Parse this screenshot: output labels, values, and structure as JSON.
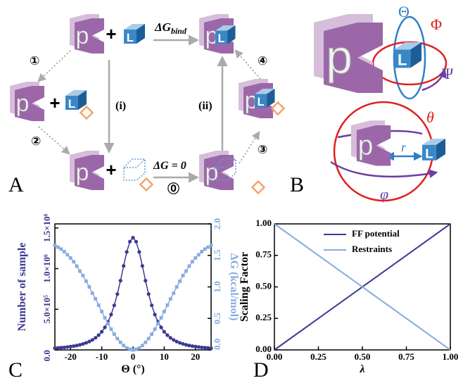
{
  "panels": {
    "a": "A",
    "b": "B",
    "c": "C",
    "d": "D"
  },
  "diagram_a": {
    "receptor": "p",
    "ligand": "L",
    "plus": "+",
    "dg_bind": "ΔG",
    "dg_bind_sub": "bind",
    "dg_zero": "ΔG = 0",
    "steps": [
      "⓪",
      "①",
      "②",
      "③",
      "④"
    ],
    "path_i": "(i)",
    "path_ii": "(ii)"
  },
  "diagram_b": {
    "receptor": "p",
    "ligand": "L",
    "Theta": "Θ",
    "Phi": "Φ",
    "Psi": "Ψ",
    "theta": "θ",
    "r": "r",
    "phi": "φ"
  },
  "chart_data": [
    {
      "type": "line",
      "xlabel": "Θ (°)",
      "ylabel": "Number of sample",
      "y2label": "ΔG (kcal/mol)",
      "x": [
        -25,
        -24,
        -23,
        -22,
        -21,
        -20,
        -19,
        -18,
        -17,
        -16,
        -15,
        -14,
        -13,
        -12,
        -11,
        -10,
        -9,
        -8,
        -7,
        -6,
        -5,
        -4,
        -3,
        -2,
        -1,
        0,
        1,
        2,
        3,
        4,
        5,
        6,
        7,
        8,
        9,
        10,
        11,
        12,
        13,
        14,
        15,
        16,
        17,
        18,
        19,
        20,
        21,
        22,
        23,
        24,
        25
      ],
      "xlim": [
        -25,
        25
      ],
      "xticks": [
        -20,
        -10,
        0,
        10,
        20
      ],
      "ylim": [
        0,
        1550000
      ],
      "yticks": [
        {
          "value": 0,
          "label": "0.0"
        },
        {
          "value": 500000,
          "label": "5.0×10⁵"
        },
        {
          "value": 1000000,
          "label": "1.0×10⁶"
        },
        {
          "value": 1500000,
          "label": "1.5×10⁶"
        }
      ],
      "y2lim": [
        0,
        2
      ],
      "y2ticks": [
        {
          "value": 0,
          "label": "0.0"
        },
        {
          "value": 0.5,
          "label": "0.5"
        },
        {
          "value": 1,
          "label": "1.0"
        },
        {
          "value": 1.5,
          "label": "1.5"
        },
        {
          "value": 2,
          "label": "2.0"
        }
      ],
      "series": [
        {
          "name": "Number of sample",
          "color": "#3b3991",
          "marker": "circle",
          "values": [
            22000,
            25000,
            28000,
            31000,
            36000,
            41000,
            47000,
            54000,
            63000,
            74000,
            87000,
            103000,
            123000,
            149000,
            182000,
            223000,
            277000,
            346000,
            435000,
            548000,
            687000,
            852000,
            1033000,
            1205000,
            1332000,
            1380000,
            1332000,
            1205000,
            1033000,
            852000,
            687000,
            548000,
            435000,
            346000,
            277000,
            223000,
            182000,
            149000,
            123000,
            103000,
            87000,
            74000,
            63000,
            54000,
            47000,
            41000,
            36000,
            31000,
            28000,
            25000,
            22000
          ]
        },
        {
          "name": "ΔG",
          "color": "#86acdf",
          "marker": "square",
          "axis": "y2",
          "values": [
            1.66,
            1.63,
            1.6,
            1.56,
            1.51,
            1.46,
            1.4,
            1.33,
            1.25,
            1.18,
            1.09,
            1.0,
            0.9,
            0.81,
            0.71,
            0.61,
            0.51,
            0.42,
            0.33,
            0.25,
            0.18,
            0.12,
            0.07,
            0.03,
            0.01,
            0,
            0.01,
            0.03,
            0.07,
            0.12,
            0.18,
            0.25,
            0.33,
            0.42,
            0.51,
            0.61,
            0.71,
            0.81,
            0.9,
            1.0,
            1.09,
            1.18,
            1.25,
            1.33,
            1.4,
            1.46,
            1.51,
            1.56,
            1.6,
            1.63,
            1.66
          ]
        }
      ]
    },
    {
      "type": "line",
      "xlabel": "λ",
      "ylabel": "Scaling Factor",
      "legend": "upper center",
      "x": [
        0,
        1
      ],
      "xlim": [
        0,
        1
      ],
      "xticks": [
        {
          "value": 0,
          "label": "0.00"
        },
        {
          "value": 0.25,
          "label": "0.25"
        },
        {
          "value": 0.5,
          "label": "0.50"
        },
        {
          "value": 0.75,
          "label": "0.75"
        },
        {
          "value": 1,
          "label": "1.00"
        }
      ],
      "ylim": [
        0,
        1
      ],
      "yticks": [
        {
          "value": 0,
          "label": "0.00"
        },
        {
          "value": 0.25,
          "label": "0.25"
        },
        {
          "value": 0.5,
          "label": "0.50"
        },
        {
          "value": 0.75,
          "label": "0.75"
        },
        {
          "value": 1,
          "label": "1.00"
        }
      ],
      "series": [
        {
          "name": "FF potential",
          "color": "#3b3991",
          "values": [
            0,
            1
          ]
        },
        {
          "name": "Restraints",
          "color": "#86acdf",
          "values": [
            1,
            0
          ]
        }
      ]
    }
  ]
}
